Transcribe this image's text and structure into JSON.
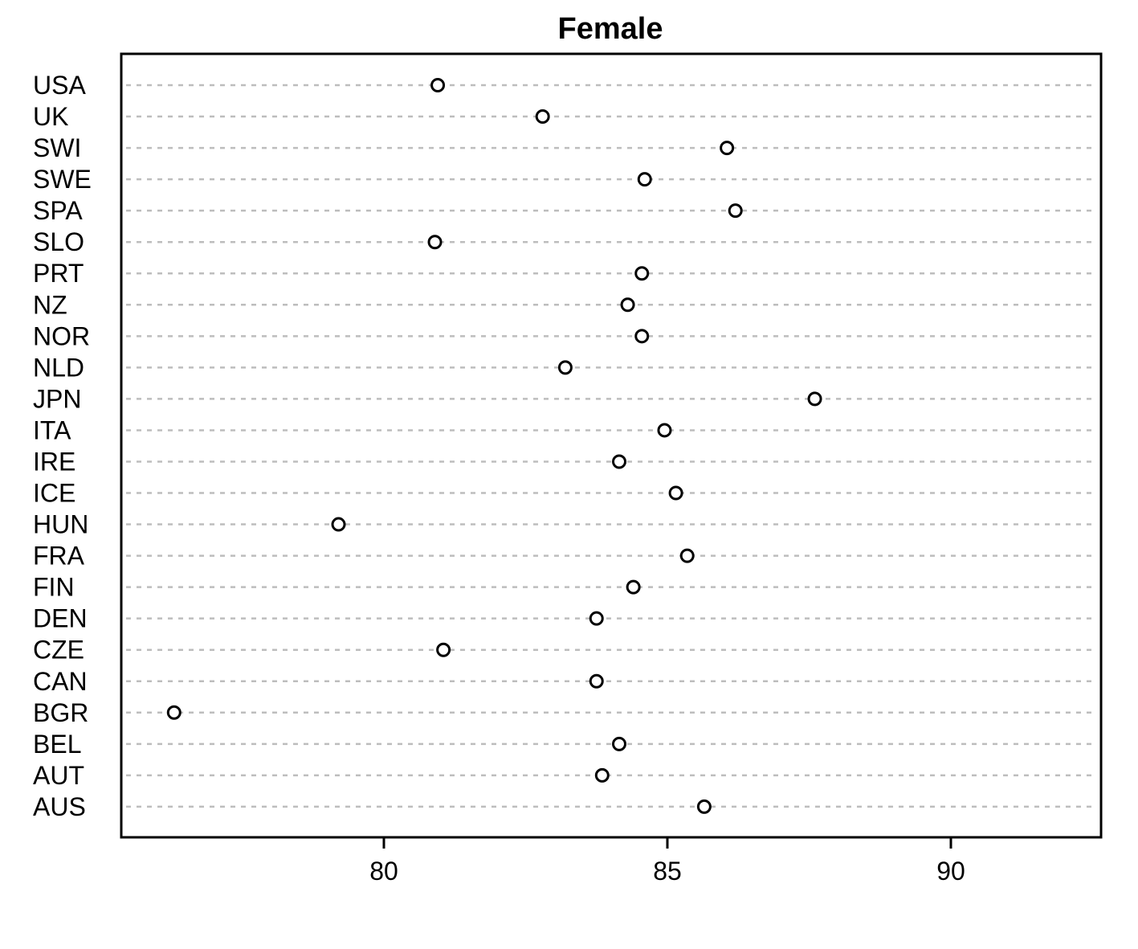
{
  "chart_data": {
    "type": "scatter",
    "subtype": "dot-plot",
    "title": "Female",
    "xlabel": "",
    "ylabel": "",
    "xlim": [
      75.4,
      92.7
    ],
    "x_ticks": [
      80,
      85,
      90
    ],
    "x_tick_labels": [
      "80",
      "85",
      "90"
    ],
    "grid": "horizontal dotted",
    "categories": [
      "USA",
      "UK",
      "SWI",
      "SWE",
      "SPA",
      "SLO",
      "PRT",
      "NZ",
      "NOR",
      "NLD",
      "JPN",
      "ITA",
      "IRE",
      "ICE",
      "HUN",
      "FRA",
      "FIN",
      "DEN",
      "CZE",
      "CAN",
      "BGR",
      "BEL",
      "AUT",
      "AUS"
    ],
    "values": [
      80.95,
      82.8,
      86.05,
      84.6,
      86.2,
      80.9,
      84.55,
      84.3,
      84.55,
      83.2,
      87.6,
      84.95,
      84.15,
      85.15,
      79.2,
      85.35,
      84.4,
      83.75,
      81.05,
      83.75,
      76.3,
      84.15,
      83.85,
      85.65
    ],
    "colors": {
      "point_stroke": "#000000",
      "point_fill": "#ffffff",
      "grid": "#bdbdbd",
      "frame": "#000000"
    }
  }
}
